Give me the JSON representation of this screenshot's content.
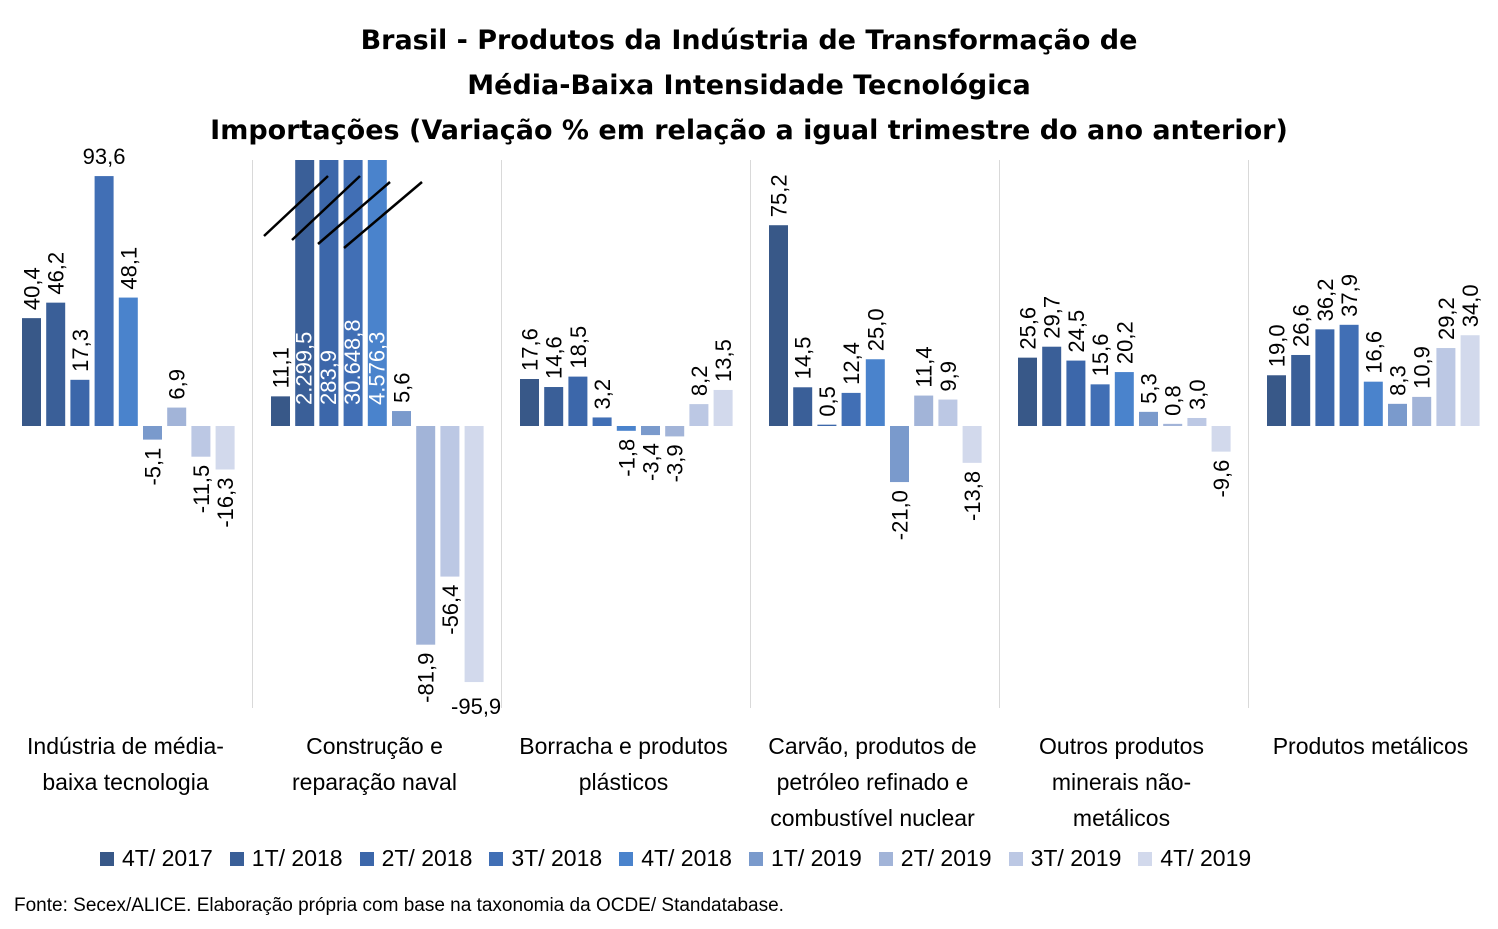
{
  "title": {
    "line1": "Brasil - Produtos da Indústria de Transformação de",
    "line2": "Média-Baixa Intensidade Tecnológica",
    "line3": "Importações (Variação % em relação a igual trimestre do ano anterior)"
  },
  "source": "Fonte: Secex/ALICE. Elaboração própria com base na taxonomia da OCDE/ Standatabase.",
  "chart_data": {
    "type": "bar",
    "categories": [
      [
        "Indústria de média-",
        "baixa tecnologia"
      ],
      [
        "Construção e",
        "reparação naval"
      ],
      [
        "Borracha e produtos",
        "plásticos"
      ],
      [
        "Carvão, produtos de",
        "petróleo refinado e",
        "combustível nuclear"
      ],
      [
        "Outros produtos",
        "minerais não-",
        "metálicos"
      ],
      [
        "Produtos metálicos"
      ]
    ],
    "series": [
      {
        "name": "4T/ 2017",
        "color": "#385888",
        "values": [
          40.4,
          11.1,
          17.6,
          75.2,
          25.6,
          19.0
        ]
      },
      {
        "name": "1T/ 2018",
        "color": "#3a5f98",
        "values": [
          46.2,
          2299.5,
          14.6,
          14.5,
          29.7,
          26.6
        ]
      },
      {
        "name": "2T/ 2018",
        "color": "#3c67aa",
        "values": [
          17.3,
          283.9,
          18.5,
          0.5,
          24.5,
          36.2
        ]
      },
      {
        "name": "3T/ 2018",
        "color": "#416fb5",
        "values": [
          93.6,
          30648.8,
          3.2,
          12.4,
          15.6,
          37.9
        ]
      },
      {
        "name": "4T/ 2018",
        "color": "#4a83cc",
        "values": [
          48.1,
          4576.3,
          -1.8,
          25.0,
          20.2,
          16.6
        ]
      },
      {
        "name": "1T/ 2019",
        "color": "#7a9acc",
        "values": [
          -5.1,
          5.6,
          -3.4,
          -21.0,
          5.3,
          8.3
        ]
      },
      {
        "name": "2T/ 2019",
        "color": "#a2b4d8",
        "values": [
          6.9,
          -81.9,
          -3.9,
          11.4,
          0.8,
          10.9
        ]
      },
      {
        "name": "3T/ 2019",
        "color": "#bcc8e4",
        "values": [
          -11.5,
          -56.4,
          8.2,
          9.9,
          3.0,
          29.2
        ]
      },
      {
        "name": "4T/ 2019",
        "color": "#d2d9ec",
        "values": [
          -16.3,
          -95.9,
          13.5,
          -13.8,
          -9.6,
          34.0
        ]
      }
    ],
    "labels": [
      [
        "40,4",
        "11,1",
        "17,6",
        "75,2",
        "25,6",
        "19,0"
      ],
      [
        "46,2",
        "2.299,5",
        "14,6",
        "14,5",
        "29,7",
        "26,6"
      ],
      [
        "17,3",
        "283,9",
        "18,5",
        "0,5",
        "24,5",
        "36,2"
      ],
      [
        "93,6",
        "30.648,8",
        "3,2",
        "12,4",
        "15,6",
        "37,9"
      ],
      [
        "48,1",
        "4.576,3",
        "-1,8",
        "25,0",
        "20,2",
        "16,6"
      ],
      [
        "-5,1",
        "5,6",
        "-3,4",
        "-21,0",
        "5,3",
        "8,3"
      ],
      [
        "6,9",
        "-81,9",
        "-3,9",
        "11,4",
        "0,8",
        "10,9"
      ],
      [
        "-11,5",
        "-56,4",
        "8,2",
        "9,9",
        "3,0",
        "29,2"
      ],
      [
        "-16,3",
        "-95,9",
        "13,5",
        "-13,8",
        "-9,6",
        "34,0"
      ]
    ],
    "axis_break": true,
    "ylim": [
      -100,
      100
    ],
    "grid": false,
    "legend_position": "bottom"
  }
}
